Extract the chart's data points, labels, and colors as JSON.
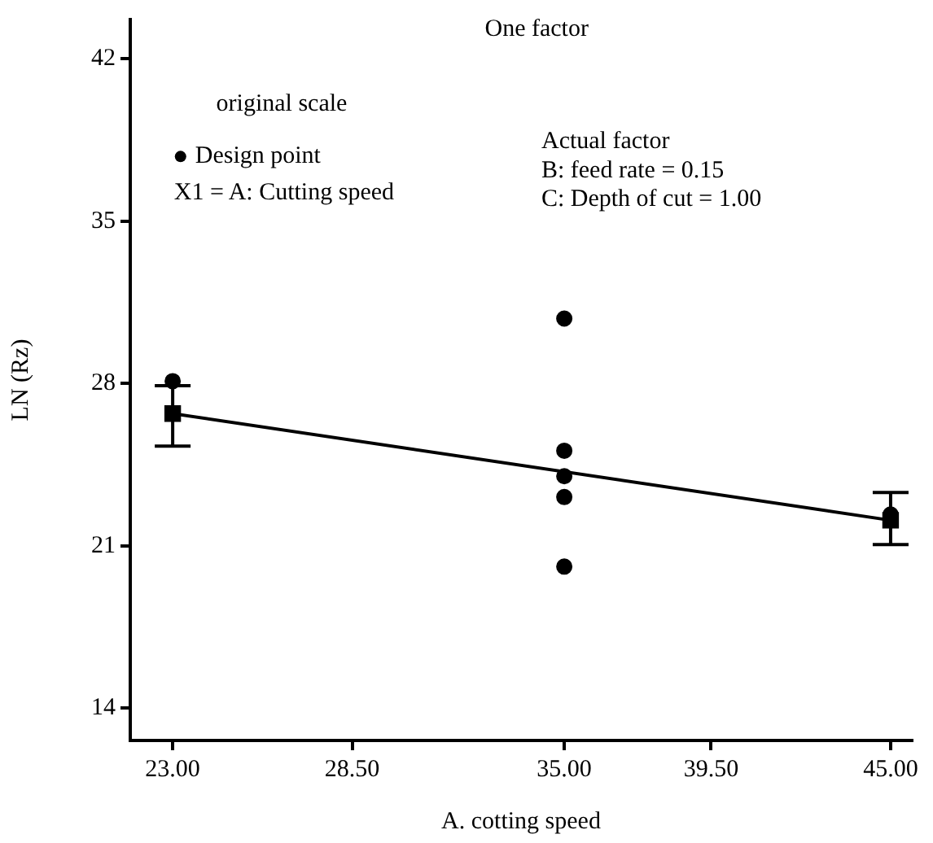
{
  "chart_data": {
    "type": "scatter",
    "title": "One factor",
    "xlabel": "A. cotting speed",
    "ylabel": "LN (Rz)",
    "xlim": [
      21.7,
      45.65
    ],
    "ylim": [
      12.6,
      43.7
    ],
    "xticks": [
      {
        "value": 23,
        "label": "23.00"
      },
      {
        "value": 28.5,
        "label": "28.50"
      },
      {
        "value": 35,
        "label": "35.00"
      },
      {
        "value": 39.5,
        "label": "39.50"
      },
      {
        "value": 45,
        "label": "45.00"
      }
    ],
    "yticks": [
      14,
      21,
      28,
      35,
      42
    ],
    "grid": false,
    "legend": "top left",
    "marker": "circle",
    "annotations": [
      "original scale",
      "X1 = A: Cutting speed",
      "Actual factor",
      "B: feed rate = 0.15",
      "C: Depth of cut = 1.00"
    ],
    "series": [
      {
        "name": "Design point",
        "color": "#000000",
        "x": [
          23,
          35,
          35,
          35,
          35,
          35,
          45
        ],
        "values": [
          28.1,
          30.8,
          25.1,
          24.0,
          23.1,
          20.1,
          22.35
        ]
      },
      {
        "type": "line",
        "marker": "none",
        "color": "#000000",
        "x": [
          23,
          45
        ],
        "values": [
          26.7,
          22.1
        ]
      },
      {
        "type": "scatter",
        "marker": "square",
        "color": "#000000",
        "x": [
          23,
          45
        ],
        "values": [
          26.7,
          22.1
        ],
        "errors": [
          [
            25.3,
            27.9
          ],
          [
            21.05,
            23.3
          ]
        ]
      }
    ]
  }
}
